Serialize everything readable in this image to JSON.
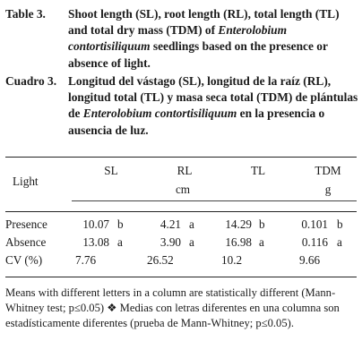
{
  "caption_en": {
    "label": "Table 3.",
    "text_pre": "Shoot length (SL), root length (RL), total length (TL) and total dry mass (TDM) of",
    "species": "Enterolobium contortisiliquum",
    "text_post": "seedlings based on the presence or absence of light."
  },
  "caption_es": {
    "label": "Cuadro 3.",
    "text_pre": "Longitud del vástago (SL), longitud de la raíz (RL), longitud total (TL) y masa seca total (TDM) de plántulas de",
    "species": "Enterolobium contortisiliquum",
    "text_post": "en la presencia o ausencia de luz."
  },
  "table": {
    "row_header": "Light",
    "columns": [
      "SL",
      "RL",
      "TL",
      "TDM"
    ],
    "units": [
      "cm",
      "g"
    ],
    "rows": [
      {
        "label": "Presence",
        "sl": "10.07",
        "sl_l": "b",
        "rl": "4.21",
        "rl_l": "a",
        "tl": "14.29",
        "tl_l": "b",
        "tdm": "0.101",
        "tdm_l": "b"
      },
      {
        "label": "Absence",
        "sl": "13.08",
        "sl_l": "a",
        "rl": "3.90",
        "rl_l": "a",
        "tl": "16.98",
        "tl_l": "a",
        "tdm": "0.116",
        "tdm_l": "a"
      },
      {
        "label": "CV (%)",
        "sl": "7.76",
        "sl_l": "",
        "rl": "26.52",
        "rl_l": "",
        "tl": "10.2",
        "tl_l": "",
        "tdm": "9.66",
        "tdm_l": ""
      }
    ]
  },
  "footnote": "Means with different letters in a column are statistically different (Mann-Whitney test; p≤0.05) ❖ Medias con letras diferentes en una columna son estadísticamente diferentes (prueba de Mann-Whitney; p≤0.05)."
}
